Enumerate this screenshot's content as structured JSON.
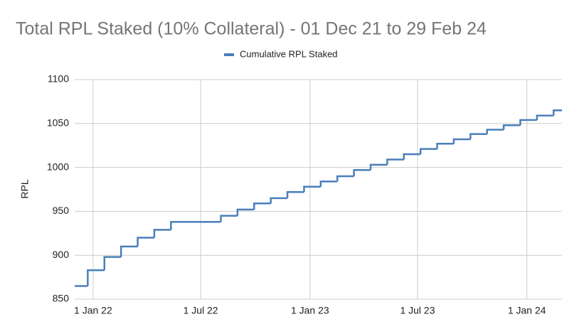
{
  "chart_data": {
    "type": "step-line",
    "title": "Total RPL Staked (10% Collateral) - 01 Dec 21 to 29 Feb 24",
    "y_label": "RPL",
    "legend_position": "top",
    "grid": true,
    "x": [
      "2021-12-01",
      "2021-12-23",
      "2022-01-20",
      "2022-02-17",
      "2022-03-17",
      "2022-04-14",
      "2022-05-12",
      "2022-08-04",
      "2022-09-01",
      "2022-09-29",
      "2022-10-27",
      "2022-11-24",
      "2022-12-22",
      "2023-01-19",
      "2023-02-16",
      "2023-03-16",
      "2023-04-13",
      "2023-05-11",
      "2023-06-08",
      "2023-07-06",
      "2023-08-03",
      "2023-08-31",
      "2023-09-28",
      "2023-10-26",
      "2023-11-23",
      "2023-12-21",
      "2024-01-18",
      "2024-02-15",
      "2024-02-29"
    ],
    "series": [
      {
        "name": "Cumulative RPL Staked",
        "color": "#4a7ebb",
        "values": [
          865,
          883,
          898,
          910,
          920,
          929,
          938,
          945,
          952,
          959,
          965,
          972,
          978,
          984,
          990,
          997,
          1003,
          1009,
          1015,
          1021,
          1027,
          1032,
          1038,
          1043,
          1048,
          1054,
          1059,
          1065,
          1065
        ]
      }
    ],
    "xlim": [
      "2021-12-01",
      "2024-02-29"
    ],
    "xticks": [
      {
        "value": "2022-01-01",
        "label": "1 Jan 22"
      },
      {
        "value": "2022-07-01",
        "label": "1 Jul 22"
      },
      {
        "value": "2023-01-01",
        "label": "1 Jan 23"
      },
      {
        "value": "2023-07-01",
        "label": "1 Jul 23"
      },
      {
        "value": "2024-01-01",
        "label": "1 Jan 24"
      }
    ],
    "ylim": [
      850,
      1100
    ],
    "yticks": [
      850,
      900,
      950,
      1000,
      1050,
      1100
    ]
  }
}
